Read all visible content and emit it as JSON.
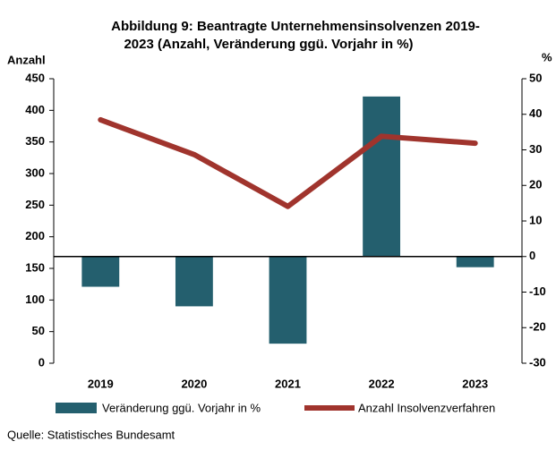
{
  "chart_data": {
    "type": "bar_line",
    "title_lines": [
      "Abbildung 9: Beantragte Unternehmensinsolvenzen 2019-",
      "2023 (Anzahl, Veränderung ggü. Vorjahr in %)"
    ],
    "y_label": "Anzahl",
    "y2_label": "%",
    "categories": [
      "2019",
      "2020",
      "2021",
      "2022",
      "2023"
    ],
    "series": [
      {
        "name": "Veränderung ggü. Vorjahr in %",
        "type": "bar",
        "axis": "y2",
        "color": "#245f6e",
        "values": [
          -8.5,
          -14,
          -24.5,
          45,
          -3
        ]
      },
      {
        "name": "Anzahl Insolvenzverfahren",
        "type": "line",
        "axis": "y",
        "color": "#a0342d",
        "values": [
          385,
          330,
          248,
          359,
          348
        ]
      }
    ],
    "ylim": [
      0,
      450
    ],
    "yticks": [
      0,
      50,
      100,
      150,
      200,
      250,
      300,
      350,
      400,
      450
    ],
    "y2lim": [
      -30,
      50
    ],
    "y2ticks": [
      -30,
      -20,
      -10,
      0,
      10,
      20,
      30,
      40,
      50
    ],
    "source": "Quelle: Statistisches Bundesamt"
  }
}
